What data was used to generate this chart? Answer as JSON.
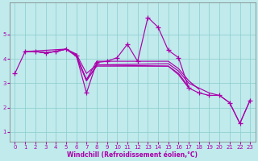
{
  "xlabel": "Windchill (Refroidissement éolien,°C)",
  "bg_color": "#c0eaec",
  "line_color": "#aa00aa",
  "grid_color": "#88cccc",
  "x_ticks": [
    0,
    1,
    2,
    3,
    4,
    5,
    6,
    7,
    8,
    9,
    10,
    11,
    12,
    13,
    14,
    15,
    16,
    17,
    18,
    19,
    20,
    21,
    22,
    23
  ],
  "y_ticks": [
    1,
    2,
    3,
    4,
    5
  ],
  "ylim": [
    0.6,
    6.3
  ],
  "xlim": [
    -0.5,
    23.5
  ],
  "main_line": [
    3.4,
    4.3,
    4.3,
    4.25,
    4.3,
    4.4,
    4.15,
    2.6,
    3.85,
    3.9,
    4.05,
    4.6,
    3.9,
    5.7,
    5.3,
    4.35,
    4.05,
    2.8,
    2.6,
    2.5,
    2.5,
    2.2,
    1.35,
    2.3
  ],
  "trend_lines": [
    {
      "x": [
        1,
        5,
        6,
        7,
        8,
        15,
        16,
        17,
        18,
        19,
        20,
        21,
        22,
        23
      ],
      "y": [
        4.3,
        4.4,
        4.1,
        3.1,
        3.75,
        3.8,
        3.5,
        3.0,
        2.8,
        2.6,
        2.5,
        2.2,
        1.35,
        2.3
      ]
    },
    {
      "x": [
        1,
        2,
        3,
        4,
        5,
        6,
        7,
        8,
        15,
        16,
        17,
        18
      ],
      "y": [
        4.3,
        4.3,
        4.25,
        4.3,
        4.4,
        4.15,
        3.15,
        3.9,
        3.9,
        3.6,
        3.1,
        2.75
      ]
    },
    {
      "x": [
        1,
        2,
        3,
        4,
        5,
        6,
        7,
        8,
        15,
        16,
        17
      ],
      "y": [
        4.3,
        4.3,
        4.25,
        4.3,
        4.4,
        4.2,
        3.4,
        3.75,
        3.7,
        3.4,
        2.85
      ]
    },
    {
      "x": [
        1,
        2,
        3,
        4,
        5,
        6,
        7,
        8,
        15,
        16,
        17
      ],
      "y": [
        4.3,
        4.3,
        4.25,
        4.3,
        4.4,
        4.15,
        3.1,
        3.7,
        3.7,
        3.35,
        2.8
      ]
    }
  ]
}
